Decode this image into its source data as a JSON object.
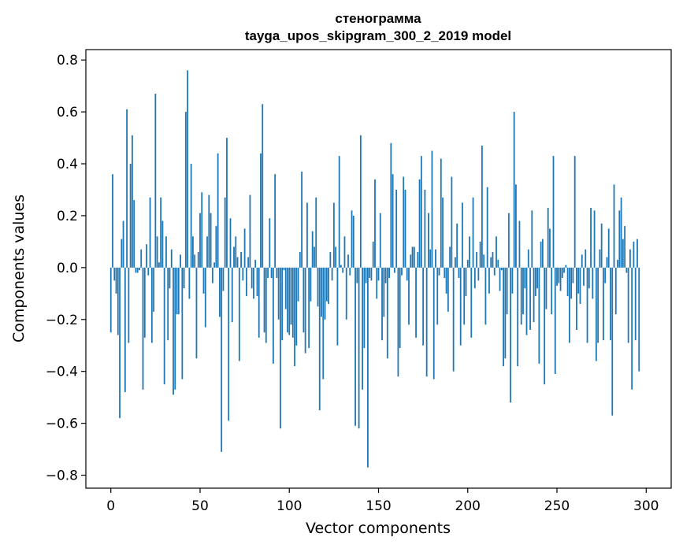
{
  "chart_data": {
    "type": "bar",
    "title_line1": "стенограмма",
    "title_line2": "tayga_upos_skipgram_300_2_2019 model",
    "xlabel": "Vector components",
    "ylabel": "Components values",
    "xlim": [
      -14,
      314
    ],
    "ylim": [
      -0.85,
      0.84
    ],
    "xticks": [
      0,
      50,
      100,
      150,
      200,
      250,
      300
    ],
    "xtick_labels": [
      "0",
      "50",
      "100",
      "150",
      "200",
      "250",
      "300"
    ],
    "yticks": [
      -0.8,
      -0.6,
      -0.4,
      -0.2,
      0.0,
      0.2,
      0.4,
      0.6,
      0.8
    ],
    "ytick_labels": [
      "−0.8",
      "−0.6",
      "−0.4",
      "−0.2",
      "0.0",
      "0.2",
      "0.4",
      "0.6",
      "0.8"
    ],
    "bar_color": "#1f77b4",
    "values": [
      -0.25,
      0.36,
      -0.05,
      -0.1,
      -0.26,
      -0.58,
      0.11,
      0.18,
      -0.48,
      0.61,
      -0.29,
      0.4,
      0.51,
      0.26,
      -0.02,
      -0.02,
      -0.01,
      0.07,
      -0.47,
      -0.27,
      0.09,
      -0.03,
      0.27,
      -0.29,
      -0.17,
      0.67,
      0.12,
      0.02,
      0.27,
      0.18,
      -0.45,
      0.12,
      -0.28,
      -0.08,
      0.07,
      -0.49,
      -0.47,
      -0.18,
      -0.18,
      0.05,
      -0.43,
      -0.08,
      0.6,
      0.76,
      -0.12,
      0.4,
      0.12,
      0.05,
      -0.35,
      0.06,
      0.21,
      0.29,
      -0.1,
      -0.23,
      0.12,
      0.28,
      0.21,
      -0.06,
      0.02,
      0.16,
      0.44,
      -0.19,
      -0.71,
      -0.09,
      0.27,
      0.5,
      -0.59,
      0.19,
      -0.21,
      0.08,
      0.12,
      0.04,
      -0.36,
      0.06,
      -0.05,
      0.15,
      -0.11,
      0.04,
      0.28,
      -0.08,
      -0.12,
      0.03,
      -0.11,
      -0.27,
      0.44,
      0.63,
      -0.25,
      -0.29,
      -0.04,
      0.19,
      -0.04,
      -0.37,
      0.36,
      -0.04,
      -0.2,
      -0.62,
      -0.28,
      -0.01,
      -0.16,
      -0.25,
      -0.26,
      -0.22,
      -0.27,
      -0.38,
      -0.3,
      -0.13,
      0.06,
      0.37,
      -0.25,
      -0.33,
      0.25,
      -0.31,
      -0.13,
      0.14,
      0.08,
      0.27,
      -0.15,
      -0.55,
      -0.19,
      -0.43,
      -0.2,
      -0.13,
      -0.14,
      0.06,
      -0.05,
      0.25,
      0.08,
      -0.3,
      0.43,
      0.01,
      -0.02,
      0.12,
      -0.2,
      0.05,
      -0.03,
      0.22,
      0.2,
      -0.61,
      -0.06,
      -0.62,
      0.51,
      -0.47,
      -0.31,
      -0.06,
      -0.77,
      -0.04,
      -0.05,
      0.1,
      0.34,
      -0.12,
      -0.05,
      0.21,
      -0.28,
      -0.19,
      -0.06,
      -0.35,
      -0.04,
      0.48,
      0.36,
      -0.02,
      0.3,
      -0.42,
      -0.31,
      -0.03,
      0.35,
      0.3,
      -0.05,
      -0.22,
      0.05,
      0.08,
      0.08,
      -0.27,
      0.06,
      0.34,
      0.43,
      -0.3,
      0.3,
      -0.42,
      0.21,
      0.07,
      0.45,
      -0.43,
      0.07,
      -0.22,
      -0.03,
      0.42,
      0.27,
      -0.04,
      -0.1,
      -0.17,
      0.08,
      0.35,
      -0.4,
      0.04,
      0.17,
      -0.04,
      -0.3,
      0.25,
      -0.22,
      -0.11,
      0.03,
      0.12,
      -0.27,
      0.27,
      -0.08,
      0.06,
      -0.05,
      0.1,
      0.47,
      0.05,
      -0.22,
      0.31,
      -0.1,
      0.04,
      0.06,
      -0.03,
      0.12,
      0.03,
      -0.09,
      -0.01,
      -0.38,
      -0.35,
      -0.18,
      0.21,
      -0.52,
      -0.1,
      0.6,
      0.32,
      -0.38,
      0.18,
      -0.22,
      -0.18,
      -0.08,
      -0.26,
      0.07,
      -0.24,
      0.22,
      -0.21,
      -0.11,
      -0.08,
      -0.37,
      0.1,
      0.11,
      -0.45,
      -0.16,
      0.23,
      0.15,
      -0.18,
      0.43,
      -0.41,
      -0.07,
      -0.06,
      -0.09,
      -0.04,
      -0.02,
      0.01,
      -0.11,
      -0.29,
      -0.12,
      -0.06,
      0.43,
      -0.24,
      -0.1,
      -0.14,
      0.05,
      -0.07,
      0.07,
      -0.29,
      -0.08,
      0.23,
      -0.12,
      0.22,
      -0.36,
      -0.29,
      0.07,
      0.17,
      -0.28,
      -0.06,
      0.04,
      0.15,
      -0.28,
      -0.57,
      0.32,
      -0.18,
      0.03,
      0.22,
      0.27,
      0.11,
      0.16,
      -0.02,
      -0.29,
      0.07,
      -0.47,
      0.1,
      -0.28,
      0.11,
      -0.4
    ]
  }
}
